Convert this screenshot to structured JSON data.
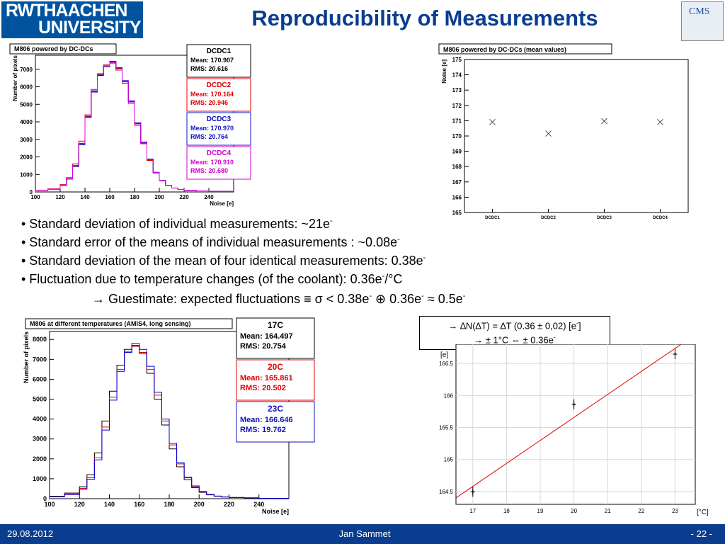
{
  "header": {
    "logo_line1": "RWTHAACHEN",
    "logo_line2": "UNIVERSITY",
    "title": "Reproducibility of Measurements",
    "cms_logo": "CMS"
  },
  "footer": {
    "date": "29.08.2012",
    "author": "Jan Sammet",
    "page": "- 22 -"
  },
  "bullets": [
    {
      "text": "• Standard deviation of individual measurements: ~21e",
      "sup": "-",
      "tail": ""
    },
    {
      "text": "• Standard error of the means of individual measurements : ~0.08e",
      "sup": "-",
      "tail": ""
    },
    {
      "text": "• Standard deviation of the mean of four identical measurements: 0.38e",
      "sup": "-",
      "tail": ""
    },
    {
      "text": "• Fluctuation due to temperature changes (of the coolant): 0.36e",
      "sup": "-",
      "tail": "/°C"
    }
  ],
  "guestimate": {
    "a": "→ Guestimate: expected fluctuations ≡ σ < 0.38e",
    "b": " ⊕ 0.36e",
    "c": " ≈ 0.5e"
  },
  "callout": {
    "line1a": "→ ∆N(∆T) = ∆T (0.36 ± 0,02) [e",
    "line1b": "]",
    "line2a": "→ ± 1°C  ⇔ ± 0.36e"
  },
  "chart_data": [
    {
      "type": "bar",
      "title": "M806 powered by DC-DCs",
      "xlabel": "Noise [e]",
      "ylabel": "Number of pixels",
      "xlim": [
        100,
        260
      ],
      "ylim": [
        0,
        7800
      ],
      "xticks": [
        100,
        120,
        140,
        160,
        180,
        200,
        220,
        240
      ],
      "yticks": [
        0,
        1000,
        2000,
        3000,
        4000,
        5000,
        6000,
        7000
      ],
      "bin_edges": [
        100,
        110,
        120,
        125,
        130,
        135,
        140,
        145,
        150,
        155,
        160,
        165,
        170,
        175,
        180,
        185,
        190,
        195,
        200,
        205,
        210,
        215,
        220,
        230,
        240,
        260
      ],
      "colors": [
        "#000000",
        "#e00000",
        "#0000e0",
        "#e000e0"
      ],
      "series": [
        {
          "name": "DCDC1",
          "values": [
            80,
            160,
            380,
            750,
            1500,
            2750,
            4300,
            5750,
            6700,
            7200,
            7400,
            7050,
            6300,
            5150,
            3900,
            2800,
            1850,
            1100,
            650,
            380,
            220,
            140,
            90,
            60,
            30
          ]
        },
        {
          "name": "DCDC2",
          "values": [
            90,
            180,
            420,
            820,
            1600,
            2900,
            4400,
            5850,
            6750,
            7250,
            7350,
            6950,
            6200,
            5050,
            3800,
            2750,
            1800,
            1080,
            640,
            370,
            220,
            140,
            90,
            60,
            30
          ]
        },
        {
          "name": "DCDC3",
          "values": [
            75,
            150,
            370,
            730,
            1450,
            2700,
            4250,
            5700,
            6650,
            7150,
            7450,
            7100,
            6350,
            5200,
            3950,
            2850,
            1880,
            1120,
            660,
            385,
            225,
            140,
            90,
            60,
            30
          ]
        },
        {
          "name": "DCDC4",
          "values": [
            80,
            165,
            385,
            760,
            1520,
            2780,
            4330,
            5780,
            6720,
            7200,
            7380,
            7030,
            6280,
            5130,
            3880,
            2800,
            1840,
            1100,
            650,
            380,
            220,
            140,
            90,
            60,
            30
          ]
        }
      ],
      "stats": [
        {
          "name": "DCDC1",
          "mean": "Mean: 170.907",
          "rms": "RMS: 20.616",
          "color": "#000000"
        },
        {
          "name": "DCDC2",
          "mean": "Mean: 170.164",
          "rms": "RMS: 20.946",
          "color": "#e00000"
        },
        {
          "name": "DCDC3",
          "mean": "Mean: 170.970",
          "rms": "RMS: 20.764",
          "color": "#1010c0"
        },
        {
          "name": "DCDC4",
          "mean": "Mean: 170.910",
          "rms": "RMS: 20.680",
          "color": "#d000d0"
        }
      ]
    },
    {
      "type": "scatter",
      "title": "M806 powered by DC-DCs (mean values)",
      "ylabel": "Noise [e]",
      "categories": [
        "DCDC1",
        "DCDC2",
        "DCDC3",
        "DCDC4"
      ],
      "values": [
        170.91,
        170.16,
        170.97,
        170.91
      ],
      "ylim": [
        165,
        175
      ],
      "yticks": [
        165,
        166,
        167,
        168,
        169,
        170,
        171,
        172,
        173,
        174,
        175
      ]
    },
    {
      "type": "bar",
      "title": "M806 at different temperatures (AMIS4, long sensing)",
      "xlabel": "Noise [e]",
      "ylabel": "Number of pixels",
      "xlim": [
        100,
        260
      ],
      "ylim": [
        0,
        8400
      ],
      "xticks": [
        100,
        120,
        140,
        160,
        180,
        200,
        220,
        240
      ],
      "yticks": [
        0,
        1000,
        2000,
        3000,
        4000,
        5000,
        6000,
        7000,
        8000
      ],
      "bin_edges": [
        100,
        110,
        120,
        125,
        130,
        135,
        140,
        145,
        150,
        155,
        160,
        165,
        170,
        175,
        180,
        185,
        190,
        195,
        200,
        205,
        210,
        215,
        220,
        230,
        240,
        260
      ],
      "colors": [
        "#000000",
        "#e00000",
        "#0000e0"
      ],
      "series": [
        {
          "name": "17C",
          "values": [
            120,
            280,
            600,
            1200,
            2300,
            3900,
            5400,
            6700,
            7500,
            7700,
            7300,
            6300,
            5000,
            3700,
            2500,
            1600,
            950,
            550,
            320,
            190,
            120,
            80,
            60,
            40,
            20
          ]
        },
        {
          "name": "20C",
          "values": [
            100,
            230,
            520,
            1050,
            2050,
            3600,
            5100,
            6500,
            7400,
            7650,
            7350,
            6500,
            5200,
            3900,
            2700,
            1750,
            1050,
            620,
            350,
            210,
            130,
            90,
            60,
            40,
            20
          ]
        },
        {
          "name": "23C",
          "values": [
            90,
            210,
            480,
            980,
            1950,
            3450,
            4950,
            6400,
            7350,
            7800,
            7500,
            6650,
            5350,
            4000,
            2780,
            1800,
            1080,
            640,
            360,
            215,
            130,
            90,
            60,
            40,
            20
          ]
        }
      ],
      "stats": [
        {
          "name": "17C",
          "mean": "Mean: 164.497",
          "rms": "RMS: 20.754",
          "color": "#000000"
        },
        {
          "name": "20C",
          "mean": "Mean: 165.861",
          "rms": "RMS: 20.502",
          "color": "#e00000"
        },
        {
          "name": "23C",
          "mean": "Mean: 166.646",
          "rms": "RMS: 19.762",
          "color": "#1010c0"
        }
      ]
    },
    {
      "type": "scatter",
      "xlabel": "[°C]",
      "ylabel": "[e]",
      "x": [
        17,
        20,
        23
      ],
      "y": [
        164.497,
        165.861,
        166.646
      ],
      "yerr": [
        0.08,
        0.08,
        0.08
      ],
      "xlim": [
        16.5,
        23.6
      ],
      "ylim": [
        164.3,
        166.8
      ],
      "xticks": [
        17,
        18,
        19,
        20,
        21,
        22,
        23
      ],
      "yticks": [
        164.5,
        165,
        165.5,
        166,
        166.5
      ],
      "ytick_labels": [
        "164.5",
        "165",
        "165.5",
        "166",
        "166.5"
      ],
      "fit_line": {
        "color": "#e00000",
        "from": [
          16.5,
          164.4
        ],
        "to": [
          23.6,
          166.95
        ]
      }
    }
  ]
}
